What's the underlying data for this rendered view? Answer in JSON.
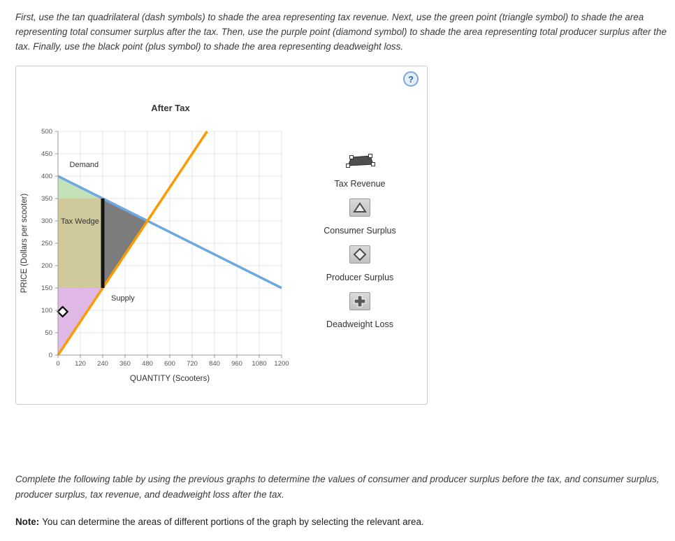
{
  "instructions": {
    "top": "First, use the tan quadrilateral (dash symbols) to shade the area representing tax revenue. Next, use the green point (triangle symbol) to shade the area representing total consumer surplus after the tax. Then, use the purple point (diamond symbol) to shade the area representing total producer surplus after the tax. Finally, use the black point (plus symbol) to shade the area representing deadweight loss.",
    "bottom": "Complete the following table by using the previous graphs to determine the values of consumer and producer surplus before the tax, and consumer surplus, producer surplus, tax revenue, and deadweight loss after the tax.",
    "note_label": "Note:",
    "note_text": "You can determine the areas of different portions of the graph by selecting the relevant area."
  },
  "panel": {
    "help_label": "?"
  },
  "legend": {
    "items": [
      {
        "label": "Tax Revenue",
        "symbol": "tan-quadrilateral-dash-symbols"
      },
      {
        "label": "Consumer Surplus",
        "symbol": "green-point-triangle-symbol"
      },
      {
        "label": "Producer Surplus",
        "symbol": "purple-point-diamond-symbol"
      },
      {
        "label": "Deadweight Loss",
        "symbol": "black-point-plus-symbol"
      }
    ]
  },
  "chart_data": {
    "type": "line",
    "title": "After Tax",
    "xlabel": "QUANTITY (Scooters)",
    "ylabel": "PRICE (Dollars per scooter)",
    "xlim": [
      0,
      1200
    ],
    "ylim": [
      0,
      500
    ],
    "xticks": [
      0,
      120,
      240,
      360,
      480,
      600,
      720,
      840,
      960,
      1080,
      1200
    ],
    "yticks": [
      0,
      50,
      100,
      150,
      200,
      250,
      300,
      350,
      400,
      450,
      500
    ],
    "grid": true,
    "series": [
      {
        "name": "Demand",
        "color": "#6fa8dc",
        "points": [
          [
            0,
            400
          ],
          [
            1200,
            150
          ]
        ],
        "label_at": [
          62,
          420
        ]
      },
      {
        "name": "Supply",
        "color": "#ff9900",
        "points": [
          [
            0,
            0
          ],
          [
            800,
            500
          ]
        ],
        "label_at": [
          285,
          122
        ]
      }
    ],
    "tax_wedge": {
      "label": "Tax Wedge",
      "x": 240,
      "price_buyers": 350,
      "price_sellers": 150,
      "tax_per_unit": 200,
      "color": "#141414",
      "label_at": [
        15,
        300
      ]
    },
    "equilibrium": {
      "quantity": 480,
      "price": 300
    },
    "areas": [
      {
        "name": "consumer-surplus",
        "color": "#b9ddab",
        "opacity": 0.85,
        "points": [
          [
            0,
            400
          ],
          [
            240,
            350
          ],
          [
            0,
            350
          ]
        ]
      },
      {
        "name": "tax-revenue",
        "color": "#c9c28d",
        "opacity": 0.88,
        "points": [
          [
            0,
            350
          ],
          [
            240,
            350
          ],
          [
            240,
            150
          ],
          [
            0,
            150
          ]
        ]
      },
      {
        "name": "producer-surplus",
        "color": "#d9a8e0",
        "opacity": 0.8,
        "points": [
          [
            0,
            150
          ],
          [
            240,
            150
          ],
          [
            0,
            0
          ]
        ]
      },
      {
        "name": "deadweight-loss",
        "color": "#6f6f6f",
        "opacity": 0.9,
        "points": [
          [
            240,
            350
          ],
          [
            480,
            300
          ],
          [
            240,
            150
          ]
        ]
      }
    ],
    "marker": {
      "shape": "diamond",
      "x": 25,
      "y": 97
    }
  }
}
